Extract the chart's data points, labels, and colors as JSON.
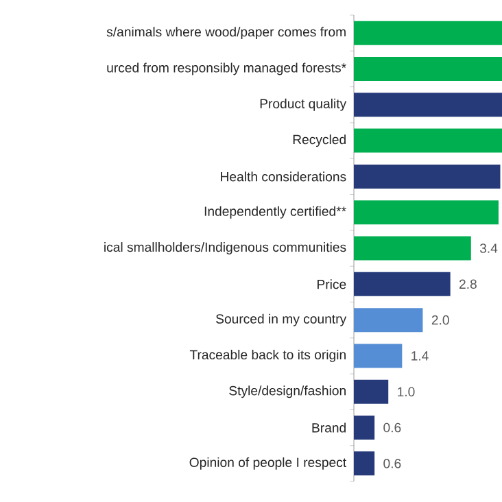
{
  "chart_data": {
    "type": "bar",
    "orientation": "horizontal",
    "categories": [
      "s/animals where wood/paper comes from",
      "urced from responsibly managed forests*",
      "Product quality",
      "Recycled",
      "Health considerations",
      "Independently certified**",
      "ical smallholders/Indigenous communities",
      "Price",
      "Sourced in my country",
      "Traceable back to its origin",
      "Style/design/fashion",
      "Brand",
      "Opinion of people I respect"
    ],
    "values": [
      4.3,
      4.3,
      4.3,
      4.3,
      4.25,
      4.2,
      3.4,
      2.8,
      2.0,
      1.4,
      1.0,
      0.6,
      0.6
    ],
    "value_labels": [
      null,
      null,
      null,
      null,
      null,
      null,
      "3.4",
      "2.8",
      "2.0",
      "1.4",
      "1.0",
      "0.6",
      "0.6"
    ],
    "colors": [
      "#00b050",
      "#00b050",
      "#263a7a",
      "#00b050",
      "#263a7a",
      "#00b050",
      "#00b050",
      "#263a7a",
      "#558ed5",
      "#558ed5",
      "#263a7a",
      "#263a7a",
      "#263a7a"
    ],
    "xlim": [
      0,
      4.3
    ],
    "tick_labels": "y"
  }
}
